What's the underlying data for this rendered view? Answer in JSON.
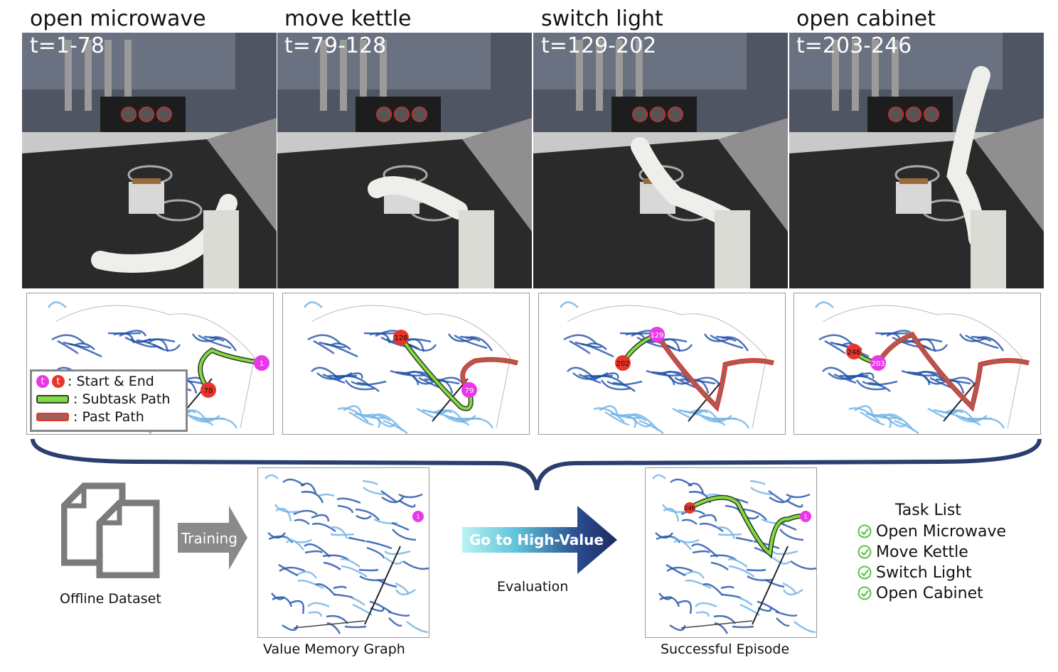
{
  "subtasks": [
    {
      "title": "open microwave",
      "time": "t=1-78",
      "start": "1",
      "end": "78"
    },
    {
      "title": "move kettle",
      "time": "t=79-128",
      "start": "79",
      "end": "128"
    },
    {
      "title": "switch light",
      "time": "t=129-202",
      "start": "129",
      "end": "202"
    },
    {
      "title": "open cabinet",
      "time": "t=203-246",
      "start": "203",
      "end": "246"
    }
  ],
  "legend": {
    "start_glyph": "t",
    "end_glyph": "t",
    "start_end": ": Start & End",
    "subtask_path": ": Subtask Path",
    "past_path": ": Past Path"
  },
  "workflow": {
    "dataset_caption": "Offline Dataset",
    "training_label": "Training",
    "graph_caption": "Value Memory Graph",
    "graph_node": "1",
    "go_label": "Go to High-Value",
    "evaluation_caption": "Evaluation",
    "episode_caption": "Successful Episode",
    "episode_start": "1",
    "episode_end": "246"
  },
  "task_list": {
    "title": "Task List",
    "items": [
      "Open Microwave",
      "Move Kettle",
      "Switch Light",
      "Open Cabinet"
    ]
  },
  "colors": {
    "start_node": "#e838e8",
    "end_node": "#e8342a",
    "subtask_path": "#7de03a",
    "past_path": "#a0605a",
    "brace": "#2b3f6e",
    "graph_dark": "#1e4fa8",
    "graph_light": "#6fb2e6",
    "check": "#5cc14a"
  },
  "icons": {
    "dataset": "document-stack-icon",
    "training_arrow": "arrow-right-icon",
    "go_arrow": "gradient-arrow-icon",
    "check": "check-circle-icon"
  }
}
